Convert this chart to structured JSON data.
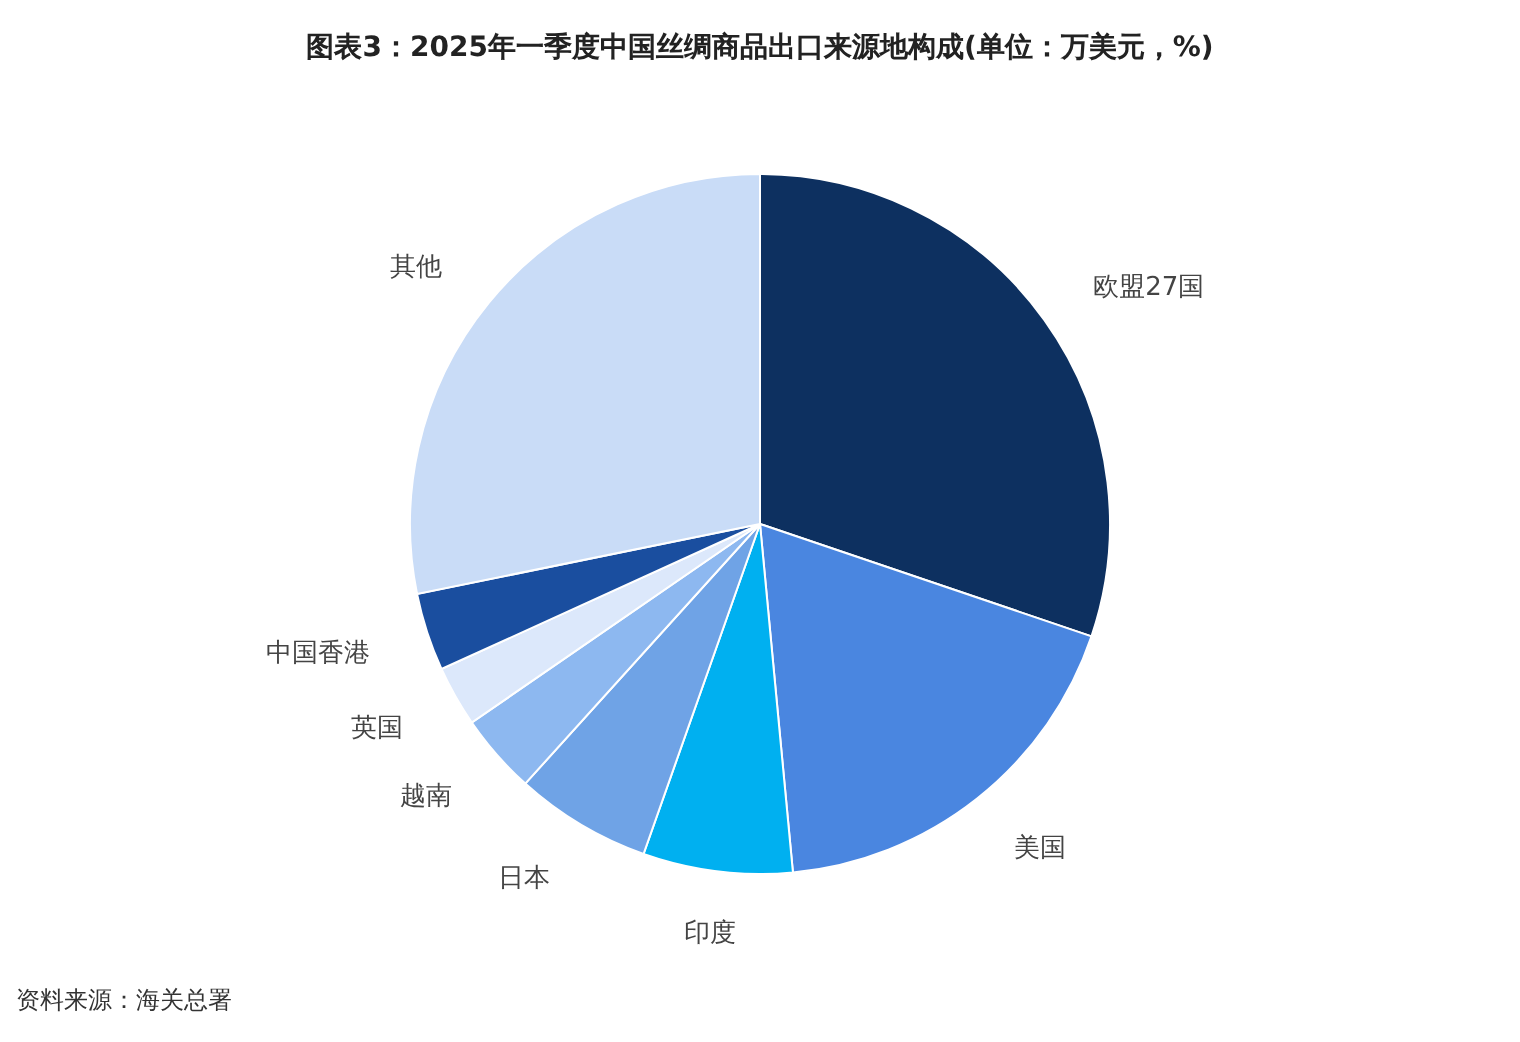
{
  "chart_data": {
    "type": "pie",
    "title": "图表3：2025年一季度中国丝绸商品出口来源地构成(单位：万美元，%)",
    "categories": [
      "欧盟27国",
      "美国",
      "印度",
      "日本",
      "越南",
      "英国",
      "中国香港",
      "其他"
    ],
    "values": [
      30.2,
      18.3,
      6.9,
      6.3,
      3.7,
      2.8,
      3.6,
      28.2
    ],
    "colors": [
      "#0d3060",
      "#4a86e0",
      "#00b0f0",
      "#6fa3e6",
      "#8db8f0",
      "#dce8fb",
      "#1a4e9f",
      "#c9dcf7"
    ],
    "annotations": [
      "资料来源：海关总署"
    ]
  }
}
